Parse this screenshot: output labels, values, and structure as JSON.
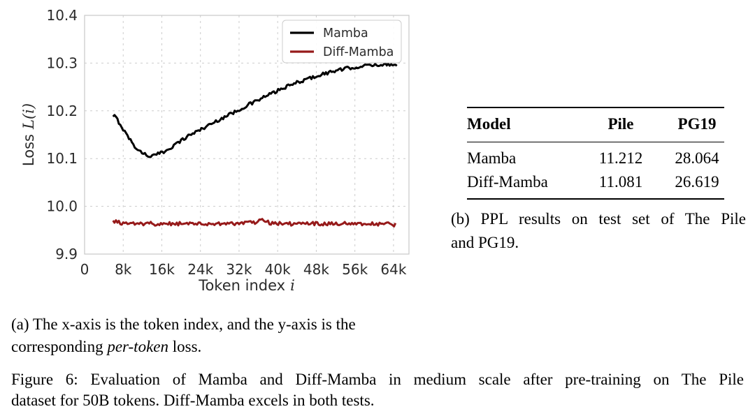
{
  "figure": {
    "caption_a": {
      "line1": "(a) The x-axis is the token index, and the y-axis is the",
      "line2_prefix": "corresponding ",
      "line2_italic": "per-token",
      "line2_suffix": " loss."
    },
    "caption_main": {
      "line1": "Figure 6: Evaluation of Mamba and Diff-Mamba in medium scale after pre-training on The Pile",
      "line2": "dataset for 50B tokens. Diff-Mamba excels in both tests."
    }
  },
  "results_table": {
    "headers": [
      "Model",
      "Pile",
      "PG19"
    ],
    "rows": [
      [
        "Mamba",
        "11.212",
        "28.064"
      ],
      [
        "Diff-Mamba",
        "11.081",
        "26.619"
      ]
    ],
    "caption_line1": "(b) PPL results on test set of The Pile",
    "caption_line2": "and PG19."
  },
  "chart_data": {
    "type": "line",
    "title": "",
    "xlabel": "Token index",
    "xlabel_var": "i",
    "ylabel": "Loss",
    "ylabel_var": "L(i)",
    "xlim": [
      0,
      67200
    ],
    "ylim": [
      9.9,
      10.4
    ],
    "grid": true,
    "legend_position": "upper right",
    "x_ticks": [
      {
        "value": 0,
        "label": "0"
      },
      {
        "value": 8000,
        "label": "8k"
      },
      {
        "value": 16000,
        "label": "16k"
      },
      {
        "value": 24000,
        "label": "24k"
      },
      {
        "value": 32000,
        "label": "32k"
      },
      {
        "value": 40000,
        "label": "40k"
      },
      {
        "value": 48000,
        "label": "48k"
      },
      {
        "value": 56000,
        "label": "56k"
      },
      {
        "value": 64000,
        "label": "64k"
      }
    ],
    "y_ticks": [
      {
        "value": 10.4,
        "label": "10.4"
      },
      {
        "value": 10.3,
        "label": "10.3"
      },
      {
        "value": 10.2,
        "label": "10.2"
      },
      {
        "value": 10.1,
        "label": "10.1"
      },
      {
        "value": 10.0,
        "label": "10.0"
      },
      {
        "value": 9.9,
        "label": "9.9"
      }
    ],
    "series": [
      {
        "name": "Mamba",
        "color": "#000000",
        "line_width": 3,
        "noise": 0.0035,
        "points": [
          [
            5900,
            10.186
          ],
          [
            6300,
            10.19
          ],
          [
            6800,
            10.181
          ],
          [
            7600,
            10.168
          ],
          [
            8400,
            10.155
          ],
          [
            9200,
            10.143
          ],
          [
            10000,
            10.131
          ],
          [
            10800,
            10.121
          ],
          [
            11600,
            10.114
          ],
          [
            12400,
            10.11
          ],
          [
            13200,
            10.106
          ],
          [
            14000,
            10.105
          ],
          [
            14800,
            10.108
          ],
          [
            15600,
            10.111
          ],
          [
            16400,
            10.114
          ],
          [
            17500,
            10.121
          ],
          [
            19000,
            10.131
          ],
          [
            20500,
            10.141
          ],
          [
            22000,
            10.151
          ],
          [
            23500,
            10.158
          ],
          [
            25000,
            10.166
          ],
          [
            26500,
            10.174
          ],
          [
            28000,
            10.182
          ],
          [
            29500,
            10.19
          ],
          [
            31000,
            10.197
          ],
          [
            32500,
            10.205
          ],
          [
            34000,
            10.213
          ],
          [
            35500,
            10.22
          ],
          [
            37000,
            10.228
          ],
          [
            38500,
            10.235
          ],
          [
            40000,
            10.242
          ],
          [
            41500,
            10.249
          ],
          [
            43000,
            10.255
          ],
          [
            44500,
            10.261
          ],
          [
            46000,
            10.266
          ],
          [
            47500,
            10.271
          ],
          [
            49000,
            10.276
          ],
          [
            50500,
            10.28
          ],
          [
            52000,
            10.284
          ],
          [
            53500,
            10.287
          ],
          [
            55000,
            10.29
          ],
          [
            56500,
            10.292
          ],
          [
            58000,
            10.294
          ],
          [
            59500,
            10.295
          ],
          [
            61000,
            10.297
          ],
          [
            62500,
            10.297
          ],
          [
            64000,
            10.298
          ],
          [
            64700,
            10.297
          ]
        ]
      },
      {
        "name": "Diff-Mamba",
        "color": "#961A1A",
        "line_width": 3,
        "noise": 0.004,
        "points": [
          [
            5900,
            9.968
          ],
          [
            7000,
            9.966
          ],
          [
            8500,
            9.964
          ],
          [
            10000,
            9.964
          ],
          [
            11500,
            9.963
          ],
          [
            13000,
            9.965
          ],
          [
            14500,
            9.963
          ],
          [
            16000,
            9.964
          ],
          [
            17500,
            9.963
          ],
          [
            19000,
            9.964
          ],
          [
            20500,
            9.963
          ],
          [
            22000,
            9.965
          ],
          [
            23500,
            9.963
          ],
          [
            25000,
            9.964
          ],
          [
            26500,
            9.963
          ],
          [
            28000,
            9.964
          ],
          [
            29500,
            9.963
          ],
          [
            31000,
            9.964
          ],
          [
            32500,
            9.963
          ],
          [
            34000,
            9.965
          ],
          [
            35500,
            9.966
          ],
          [
            36800,
            9.971
          ],
          [
            38000,
            9.966
          ],
          [
            39500,
            9.964
          ],
          [
            41000,
            9.965
          ],
          [
            42500,
            9.963
          ],
          [
            44000,
            9.964
          ],
          [
            45500,
            9.965
          ],
          [
            47000,
            9.964
          ],
          [
            48500,
            9.963
          ],
          [
            50000,
            9.964
          ],
          [
            51500,
            9.963
          ],
          [
            53000,
            9.964
          ],
          [
            54500,
            9.964
          ],
          [
            56000,
            9.965
          ],
          [
            57500,
            9.964
          ],
          [
            59000,
            9.965
          ],
          [
            60500,
            9.963
          ],
          [
            62000,
            9.964
          ],
          [
            63300,
            9.963
          ],
          [
            64400,
            9.961
          ]
        ]
      }
    ]
  }
}
